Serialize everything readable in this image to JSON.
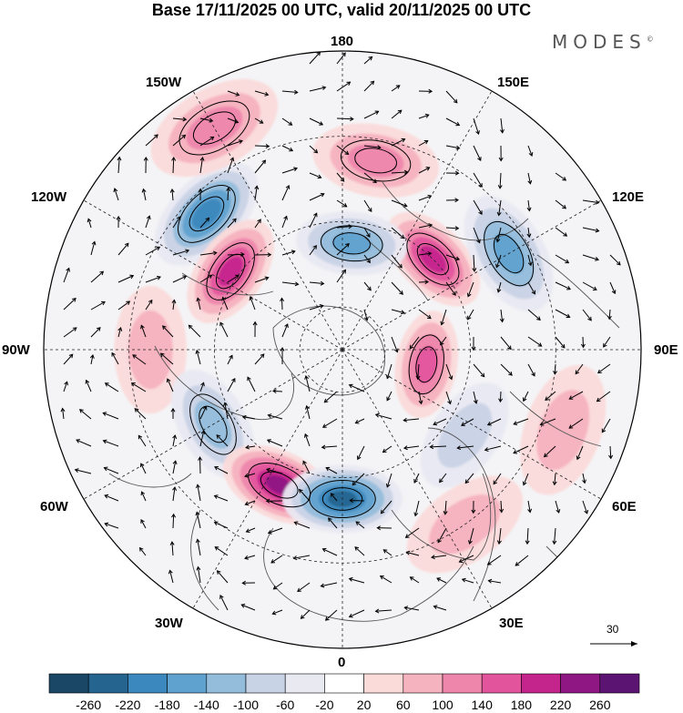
{
  "title": "Base 17/11/2025 00 UTC, valid 20/11/2025 00 UTC",
  "brand": "MODES",
  "brand_mark": "©",
  "longitude_labels": {
    "lon_180": "180",
    "lon_150e": "150E",
    "lon_120e": "120E",
    "lon_90e": "90E",
    "lon_60e": "60E",
    "lon_30e": "30E",
    "lon_0": "0",
    "lon_30w": "30W",
    "lon_60w": "60W",
    "lon_90w": "90W",
    "lon_120w": "120W",
    "lon_150w": "150W"
  },
  "reference_vector": {
    "label": "30"
  },
  "colorbar": {
    "labels": [
      "-260",
      "-220",
      "-180",
      "-140",
      "-100",
      "-60",
      "-20",
      "20",
      "60",
      "100",
      "140",
      "180",
      "220",
      "260"
    ],
    "colors": [
      "#1a4766",
      "#24648f",
      "#3a88bd",
      "#5fa1cf",
      "#93bddb",
      "#c9d3e6",
      "#e9e9f2",
      "#ffffff",
      "#fbdada",
      "#f5b2bf",
      "#ee86ac",
      "#e2559d",
      "#c4258d",
      "#8f1784",
      "#5c1473"
    ]
  },
  "map_data": {
    "field": "geopotential height anomaly with wind vectors",
    "anomalies": [
      {
        "lon": 135,
        "lat": 60,
        "value": 230
      },
      {
        "lon": 170,
        "lat": 45,
        "value": 150
      },
      {
        "lon": 120,
        "lat": 45,
        "value": -180
      },
      {
        "lon": 175,
        "lat": 65,
        "value": -170
      },
      {
        "lon": -135,
        "lat": 45,
        "value": -220
      },
      {
        "lon": -150,
        "lat": 30,
        "value": 140
      },
      {
        "lon": -125,
        "lat": 58,
        "value": 210
      },
      {
        "lon": -90,
        "lat": 45,
        "value": 110
      },
      {
        "lon": -60,
        "lat": 55,
        "value": -150
      },
      {
        "lon": -25,
        "lat": 55,
        "value": 260
      },
      {
        "lon": 0,
        "lat": 55,
        "value": -260
      },
      {
        "lon": 80,
        "lat": 70,
        "value": 190
      },
      {
        "lon": 55,
        "lat": 55,
        "value": -110
      },
      {
        "lon": 35,
        "lat": 40,
        "value": 110
      },
      {
        "lon": 70,
        "lat": 35,
        "value": 80
      }
    ]
  }
}
